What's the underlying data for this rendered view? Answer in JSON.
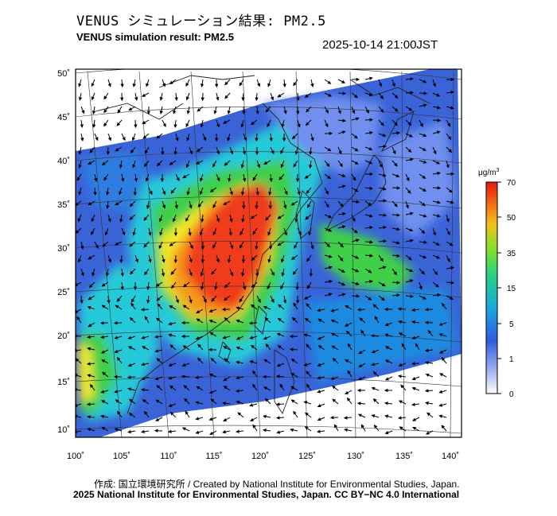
{
  "header": {
    "title_jp": "VENUS シミュレーション結果: PM2.5",
    "title_en": "VENUS simulation result: PM2.5",
    "timestamp": "2025-10-14 21:00JST"
  },
  "map": {
    "lat_labels": [
      "50˚",
      "45˚",
      "40˚",
      "35˚",
      "30˚",
      "25˚",
      "20˚",
      "15˚",
      "10˚"
    ],
    "lon_labels": [
      "100˚",
      "105˚",
      "110˚",
      "115˚",
      "120˚",
      "125˚",
      "130˚",
      "135˚",
      "140˚"
    ],
    "colors": {
      "background": "#3a63d8",
      "low": "#6f8fee",
      "mid_blue": "#1f8ae0",
      "cyan": "#27c9d8",
      "green": "#3fcf4a",
      "yellow": "#f2e92c",
      "orange": "#f59a1e",
      "red": "#f03a1a",
      "land_outline": "#222222"
    }
  },
  "colorbar": {
    "unit_label": "μg/m",
    "unit_superscript": "3",
    "ticks": [
      "70",
      "50",
      "35",
      "15",
      "5",
      "1",
      "0"
    ],
    "colors": [
      "#e8150f",
      "#f06b18",
      "#f5c21c",
      "#7fe02c",
      "#23cf8a",
      "#1aa6e2",
      "#2f5ce0",
      "#a8b8f0",
      "#ffffff"
    ]
  },
  "footer": {
    "credit_jp": "作成: 国立環境研究所 / Created by National Institute for Environmental Studies, Japan.",
    "credit_en": "2025 National Institute for Environmental Studies, Japan. CC BY−NC 4.0 International"
  }
}
